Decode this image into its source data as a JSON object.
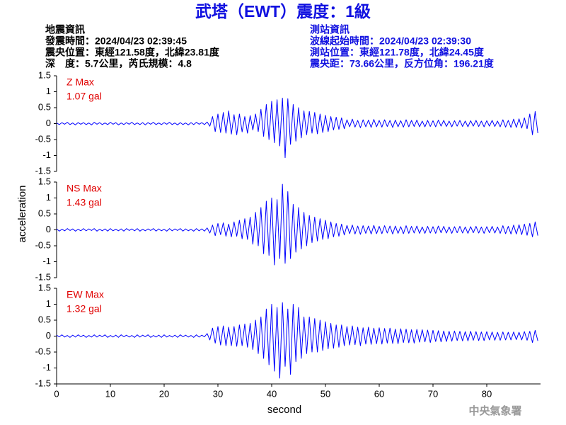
{
  "header": {
    "title": "武塔（EWT）震度：1級",
    "left": [
      "地震資訊",
      "發震時間：2024/04/23 02:39:45",
      "震央位置：東經121.58度，北緯23.81度",
      "深　度：5.7公里，芮氏規模：4.8"
    ],
    "right": [
      "測站資訊",
      "波線起始時間：2024/04/23 02:39:30",
      "測站位置：東經121.78度，北緯24.45度",
      "震央距：73.66公里，反方位角：196.21度"
    ],
    "footer": "中央氣象署"
  },
  "chart_data": [
    {
      "type": "line",
      "title": "Z Max",
      "annotation": "1.07 gal",
      "color": "#0000ff",
      "label_color": "#e00000",
      "xlim": [
        0,
        90
      ],
      "ylim": [
        -1.5,
        1.5
      ],
      "yticks": [
        -1.5,
        -1,
        -0.5,
        0,
        0.5,
        1,
        1.5
      ],
      "x": [
        0,
        0.5,
        1,
        1.5,
        2,
        2.5,
        3,
        3.5,
        4,
        4.5,
        5,
        5.5,
        6,
        6.5,
        7,
        7.5,
        8,
        8.5,
        9,
        9.5,
        10,
        10.5,
        11,
        11.5,
        12,
        12.5,
        13,
        13.5,
        14,
        14.5,
        15,
        15.5,
        16,
        16.5,
        17,
        17.5,
        18,
        18.5,
        19,
        19.5,
        20,
        20.5,
        21,
        21.5,
        22,
        22.5,
        23,
        23.5,
        24,
        24.5,
        25,
        25.5,
        26,
        26.5,
        27,
        27.5,
        28,
        28.5,
        29,
        29.5,
        30,
        30.5,
        31,
        31.5,
        32,
        32.5,
        33,
        33.5,
        34,
        34.5,
        35,
        35.5,
        36,
        36.5,
        37,
        37.5,
        38,
        38.5,
        39,
        39.5,
        40,
        40.5,
        41,
        41.5,
        42,
        42.5,
        43,
        43.5,
        44,
        44.5,
        45,
        45.5,
        46,
        46.5,
        47,
        47.5,
        48,
        48.5,
        49,
        49.5,
        50,
        50.5,
        51,
        51.5,
        52,
        52.5,
        53,
        53.5,
        54,
        54.5,
        55,
        55.5,
        56,
        56.5,
        57,
        57.5,
        58,
        58.5,
        59,
        59.5,
        60,
        60.5,
        61,
        61.5,
        62,
        62.5,
        63,
        63.5,
        64,
        64.5,
        65,
        65.5,
        66,
        66.5,
        67,
        67.5,
        68,
        68.5,
        69,
        69.5,
        70,
        70.5,
        71,
        71.5,
        72,
        72.5,
        73,
        73.5,
        74,
        74.5,
        75,
        75.5,
        76,
        76.5,
        77,
        77.5,
        78,
        78.5,
        79,
        79.5,
        80,
        80.5,
        81,
        81.5,
        82,
        82.5,
        83,
        83.5,
        84,
        84.5,
        85,
        85.5,
        86,
        86.5,
        87,
        87.5,
        88,
        88.5,
        89,
        89.5
      ],
      "values": [
        0.02,
        -0.03,
        0.03,
        -0.02,
        0.04,
        -0.03,
        0.02,
        -0.04,
        0.03,
        -0.02,
        0.03,
        -0.03,
        0.02,
        -0.04,
        0.04,
        -0.02,
        0.03,
        -0.03,
        0.02,
        -0.03,
        0.04,
        -0.02,
        0.03,
        -0.04,
        0.02,
        -0.03,
        0.03,
        -0.02,
        0.04,
        -0.03,
        0.02,
        -0.03,
        0.03,
        -0.04,
        0.03,
        -0.02,
        0.04,
        -0.03,
        0.02,
        -0.03,
        0.03,
        -0.02,
        0.04,
        -0.03,
        0.02,
        -0.04,
        0.03,
        -0.03,
        0.02,
        -0.04,
        0.03,
        -0.03,
        0.04,
        -0.02,
        0.03,
        -0.03,
        0.05,
        -0.08,
        0.22,
        -0.25,
        0.3,
        -0.28,
        0.35,
        -0.3,
        0.4,
        -0.33,
        0.28,
        -0.35,
        0.3,
        -0.26,
        0.22,
        -0.3,
        0.25,
        -0.2,
        0.3,
        -0.25,
        0.45,
        -0.4,
        0.6,
        -0.5,
        0.7,
        -0.6,
        0.75,
        -0.7,
        0.8,
        -1.07,
        0.78,
        -0.65,
        0.6,
        -0.55,
        0.5,
        -0.45,
        0.4,
        -0.35,
        0.38,
        -0.3,
        0.35,
        -0.32,
        0.3,
        -0.28,
        0.26,
        -0.25,
        0.22,
        -0.2,
        0.2,
        -0.18,
        0.18,
        -0.16,
        0.12,
        -0.1,
        0.14,
        -0.11,
        0.1,
        -0.13,
        0.12,
        -0.1,
        0.11,
        -0.12,
        0.13,
        -0.1,
        0.1,
        -0.11,
        0.12,
        -0.09,
        0.1,
        -0.12,
        0.11,
        -0.1,
        0.09,
        -0.11,
        0.12,
        -0.1,
        0.1,
        -0.09,
        0.11,
        -0.1,
        0.08,
        -0.1,
        0.1,
        -0.09,
        0.09,
        -0.1,
        0.11,
        -0.08,
        0.1,
        -0.09,
        0.08,
        -0.1,
        0.09,
        -0.08,
        0.1,
        -0.09,
        0.08,
        -0.1,
        0.09,
        -0.08,
        0.1,
        -0.09,
        0.08,
        -0.1,
        0.09,
        -0.08,
        0.1,
        -0.09,
        0.08,
        -0.1,
        0.12,
        -0.11,
        0.1,
        -0.12,
        0.14,
        -0.12,
        0.15,
        -0.14,
        0.18,
        -0.16,
        0.3,
        -0.35,
        0.38,
        -0.3
      ]
    },
    {
      "type": "line",
      "title": "NS Max",
      "annotation": "1.43 gal",
      "ylabel": "acceleration",
      "color": "#0000ff",
      "label_color": "#e00000",
      "xlim": [
        0,
        90
      ],
      "ylim": [
        -1.5,
        1.5
      ],
      "yticks": [
        -1.5,
        -1,
        -0.5,
        0,
        0.5,
        1,
        1.5
      ],
      "x": [
        0,
        0.5,
        1,
        1.5,
        2,
        2.5,
        3,
        3.5,
        4,
        4.5,
        5,
        5.5,
        6,
        6.5,
        7,
        7.5,
        8,
        8.5,
        9,
        9.5,
        10,
        10.5,
        11,
        11.5,
        12,
        12.5,
        13,
        13.5,
        14,
        14.5,
        15,
        15.5,
        16,
        16.5,
        17,
        17.5,
        18,
        18.5,
        19,
        19.5,
        20,
        20.5,
        21,
        21.5,
        22,
        22.5,
        23,
        23.5,
        24,
        24.5,
        25,
        25.5,
        26,
        26.5,
        27,
        27.5,
        28,
        28.5,
        29,
        29.5,
        30,
        30.5,
        31,
        31.5,
        32,
        32.5,
        33,
        33.5,
        34,
        34.5,
        35,
        35.5,
        36,
        36.5,
        37,
        37.5,
        38,
        38.5,
        39,
        39.5,
        40,
        40.5,
        41,
        41.5,
        42,
        42.5,
        43,
        43.5,
        44,
        44.5,
        45,
        45.5,
        46,
        46.5,
        47,
        47.5,
        48,
        48.5,
        49,
        49.5,
        50,
        50.5,
        51,
        51.5,
        52,
        52.5,
        53,
        53.5,
        54,
        54.5,
        55,
        55.5,
        56,
        56.5,
        57,
        57.5,
        58,
        58.5,
        59,
        59.5,
        60,
        60.5,
        61,
        61.5,
        62,
        62.5,
        63,
        63.5,
        64,
        64.5,
        65,
        65.5,
        66,
        66.5,
        67,
        67.5,
        68,
        68.5,
        69,
        69.5,
        70,
        70.5,
        71,
        71.5,
        72,
        72.5,
        73,
        73.5,
        74,
        74.5,
        75,
        75.5,
        76,
        76.5,
        77,
        77.5,
        78,
        78.5,
        79,
        79.5,
        80,
        80.5,
        81,
        81.5,
        82,
        82.5,
        83,
        83.5,
        84,
        84.5,
        85,
        85.5,
        86,
        86.5,
        87,
        87.5,
        88,
        88.5,
        89,
        89.5
      ],
      "values": [
        0.03,
        -0.04,
        0.02,
        -0.03,
        0.04,
        -0.02,
        0.03,
        -0.04,
        0.02,
        -0.03,
        0.04,
        -0.03,
        0.03,
        -0.02,
        0.04,
        -0.04,
        0.02,
        -0.03,
        0.03,
        -0.04,
        0.04,
        -0.03,
        0.02,
        -0.03,
        0.03,
        -0.04,
        0.04,
        -0.02,
        0.03,
        -0.03,
        0.04,
        -0.04,
        0.02,
        -0.03,
        0.03,
        -0.02,
        0.04,
        -0.04,
        0.03,
        -0.03,
        0.02,
        -0.04,
        0.04,
        -0.03,
        0.03,
        -0.02,
        0.04,
        -0.04,
        0.03,
        -0.03,
        0.02,
        -0.04,
        0.04,
        -0.03,
        0.03,
        -0.04,
        0.06,
        -0.1,
        0.15,
        -0.18,
        0.2,
        -0.15,
        0.22,
        -0.2,
        0.18,
        -0.22,
        0.25,
        -0.2,
        0.3,
        -0.28,
        0.35,
        -0.3,
        0.4,
        -0.45,
        0.55,
        -0.5,
        0.7,
        -0.75,
        0.9,
        -0.8,
        1.0,
        -1.1,
        0.95,
        -0.9,
        1.43,
        -1.05,
        1.2,
        -0.9,
        0.8,
        -0.7,
        0.7,
        -0.6,
        0.55,
        -0.5,
        0.45,
        -0.4,
        0.4,
        -0.35,
        0.35,
        -0.3,
        0.3,
        -0.28,
        0.25,
        -0.22,
        0.2,
        -0.2,
        0.18,
        -0.16,
        0.14,
        -0.12,
        0.15,
        -0.13,
        0.12,
        -0.14,
        0.13,
        -0.11,
        0.12,
        -0.13,
        0.14,
        -0.12,
        0.11,
        -0.12,
        0.13,
        -0.1,
        0.12,
        -0.13,
        0.12,
        -0.11,
        0.1,
        -0.12,
        0.13,
        -0.11,
        0.11,
        -0.1,
        0.12,
        -0.11,
        0.09,
        -0.11,
        0.11,
        -0.1,
        0.1,
        -0.11,
        0.12,
        -0.09,
        0.11,
        -0.1,
        0.09,
        -0.11,
        0.1,
        -0.09,
        0.11,
        -0.1,
        0.09,
        -0.11,
        0.1,
        -0.09,
        0.11,
        -0.1,
        0.09,
        -0.11,
        0.1,
        -0.09,
        0.11,
        -0.1,
        0.09,
        -0.11,
        0.13,
        -0.12,
        0.11,
        -0.13,
        0.15,
        -0.13,
        0.16,
        -0.15,
        0.18,
        -0.17,
        0.2,
        -0.22,
        0.25,
        -0.18
      ]
    },
    {
      "type": "line",
      "title": "EW Max",
      "annotation": "1.32 gal",
      "xlabel": "second",
      "color": "#0000ff",
      "label_color": "#e00000",
      "xlim": [
        0,
        90
      ],
      "xticks": [
        0,
        10,
        20,
        30,
        40,
        50,
        60,
        70,
        80
      ],
      "ylim": [
        -1.5,
        1.5
      ],
      "yticks": [
        -1.5,
        -1,
        -0.5,
        0,
        0.5,
        1,
        1.5
      ],
      "x": [
        0,
        0.5,
        1,
        1.5,
        2,
        2.5,
        3,
        3.5,
        4,
        4.5,
        5,
        5.5,
        6,
        6.5,
        7,
        7.5,
        8,
        8.5,
        9,
        9.5,
        10,
        10.5,
        11,
        11.5,
        12,
        12.5,
        13,
        13.5,
        14,
        14.5,
        15,
        15.5,
        16,
        16.5,
        17,
        17.5,
        18,
        18.5,
        19,
        19.5,
        20,
        20.5,
        21,
        21.5,
        22,
        22.5,
        23,
        23.5,
        24,
        24.5,
        25,
        25.5,
        26,
        26.5,
        27,
        27.5,
        28,
        28.5,
        29,
        29.5,
        30,
        30.5,
        31,
        31.5,
        32,
        32.5,
        33,
        33.5,
        34,
        34.5,
        35,
        35.5,
        36,
        36.5,
        37,
        37.5,
        38,
        38.5,
        39,
        39.5,
        40,
        40.5,
        41,
        41.5,
        42,
        42.5,
        43,
        43.5,
        44,
        44.5,
        45,
        45.5,
        46,
        46.5,
        47,
        47.5,
        48,
        48.5,
        49,
        49.5,
        50,
        50.5,
        51,
        51.5,
        52,
        52.5,
        53,
        53.5,
        54,
        54.5,
        55,
        55.5,
        56,
        56.5,
        57,
        57.5,
        58,
        58.5,
        59,
        59.5,
        60,
        60.5,
        61,
        61.5,
        62,
        62.5,
        63,
        63.5,
        64,
        64.5,
        65,
        65.5,
        66,
        66.5,
        67,
        67.5,
        68,
        68.5,
        69,
        69.5,
        70,
        70.5,
        71,
        71.5,
        72,
        72.5,
        73,
        73.5,
        74,
        74.5,
        75,
        75.5,
        76,
        76.5,
        77,
        77.5,
        78,
        78.5,
        79,
        79.5,
        80,
        80.5,
        81,
        81.5,
        82,
        82.5,
        83,
        83.5,
        84,
        84.5,
        85,
        85.5,
        86,
        86.5,
        87,
        87.5,
        88,
        88.5,
        89,
        89.5
      ],
      "values": [
        0.03,
        -0.02,
        0.04,
        -0.03,
        0.02,
        -0.04,
        0.03,
        -0.03,
        0.04,
        -0.02,
        0.03,
        -0.04,
        0.02,
        -0.03,
        0.04,
        -0.03,
        0.03,
        -0.02,
        0.04,
        -0.04,
        0.02,
        -0.03,
        0.03,
        -0.04,
        0.04,
        -0.02,
        0.03,
        -0.03,
        0.02,
        -0.04,
        0.04,
        -0.03,
        0.03,
        -0.02,
        0.04,
        -0.04,
        0.02,
        -0.03,
        0.03,
        -0.04,
        0.04,
        -0.03,
        0.02,
        -0.03,
        0.03,
        -0.04,
        0.04,
        -0.02,
        0.03,
        -0.03,
        0.02,
        -0.04,
        0.04,
        -0.03,
        0.03,
        -0.02,
        0.08,
        -0.12,
        0.25,
        -0.22,
        0.3,
        -0.28,
        0.32,
        -0.3,
        0.28,
        -0.3,
        0.3,
        -0.32,
        0.35,
        -0.3,
        0.38,
        -0.35,
        0.4,
        -0.42,
        0.5,
        -0.55,
        0.6,
        -0.7,
        0.85,
        -0.9,
        1.0,
        -1.1,
        0.9,
        -1.32,
        1.05,
        -0.95,
        0.85,
        -1.2,
        1.0,
        -0.8,
        0.9,
        -0.7,
        0.6,
        -0.55,
        0.6,
        -0.5,
        0.55,
        -0.5,
        0.5,
        -0.45,
        0.45,
        -0.4,
        0.4,
        -0.38,
        0.35,
        -0.35,
        0.35,
        -0.3,
        0.3,
        -0.28,
        0.32,
        -0.27,
        0.28,
        -0.3,
        0.26,
        -0.25,
        0.28,
        -0.26,
        0.25,
        -0.24,
        0.26,
        -0.25,
        0.24,
        -0.22,
        0.25,
        -0.23,
        0.22,
        -0.24,
        0.23,
        -0.2,
        0.22,
        -0.21,
        0.2,
        -0.22,
        0.21,
        -0.19,
        0.2,
        -0.18,
        0.19,
        -0.2,
        0.18,
        -0.17,
        0.17,
        -0.18,
        0.16,
        -0.17,
        0.15,
        -0.16,
        0.16,
        -0.14,
        0.15,
        -0.15,
        0.14,
        -0.15,
        0.15,
        -0.13,
        0.14,
        -0.14,
        0.13,
        -0.14,
        0.14,
        -0.12,
        0.13,
        -0.13,
        0.12,
        -0.13,
        0.13,
        -0.12,
        0.12,
        -0.12,
        0.13,
        -0.11,
        0.12,
        -0.12,
        0.14,
        -0.13,
        0.15,
        -0.2,
        0.18,
        -0.15
      ]
    }
  ]
}
